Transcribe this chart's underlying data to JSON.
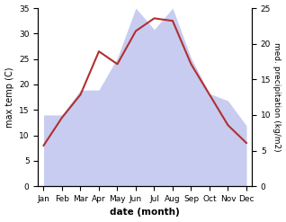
{
  "months": [
    "Jan",
    "Feb",
    "Mar",
    "Apr",
    "May",
    "Jun",
    "Jul",
    "Aug",
    "Sep",
    "Oct",
    "Nov",
    "Dec"
  ],
  "max_temp": [
    8.0,
    13.5,
    18.0,
    26.5,
    24.0,
    30.5,
    33.0,
    32.5,
    24.0,
    18.0,
    12.0,
    8.5
  ],
  "precipitation": [
    10.0,
    10.0,
    13.5,
    13.5,
    18.0,
    25.0,
    22.0,
    25.0,
    18.0,
    13.0,
    12.0,
    8.5
  ],
  "temp_color": "#b03030",
  "precip_fill_color": "#c8ccf0",
  "temp_ylim": [
    0,
    35
  ],
  "precip_ylim": [
    0,
    25
  ],
  "temp_yticks": [
    0,
    5,
    10,
    15,
    20,
    25,
    30,
    35
  ],
  "precip_yticks": [
    0,
    5,
    10,
    15,
    20,
    25
  ],
  "xlabel": "date (month)",
  "ylabel_left": "max temp (C)",
  "ylabel_right": "med. precipitation (kg/m2)",
  "label_fontsize": 7,
  "tick_fontsize": 6.5
}
